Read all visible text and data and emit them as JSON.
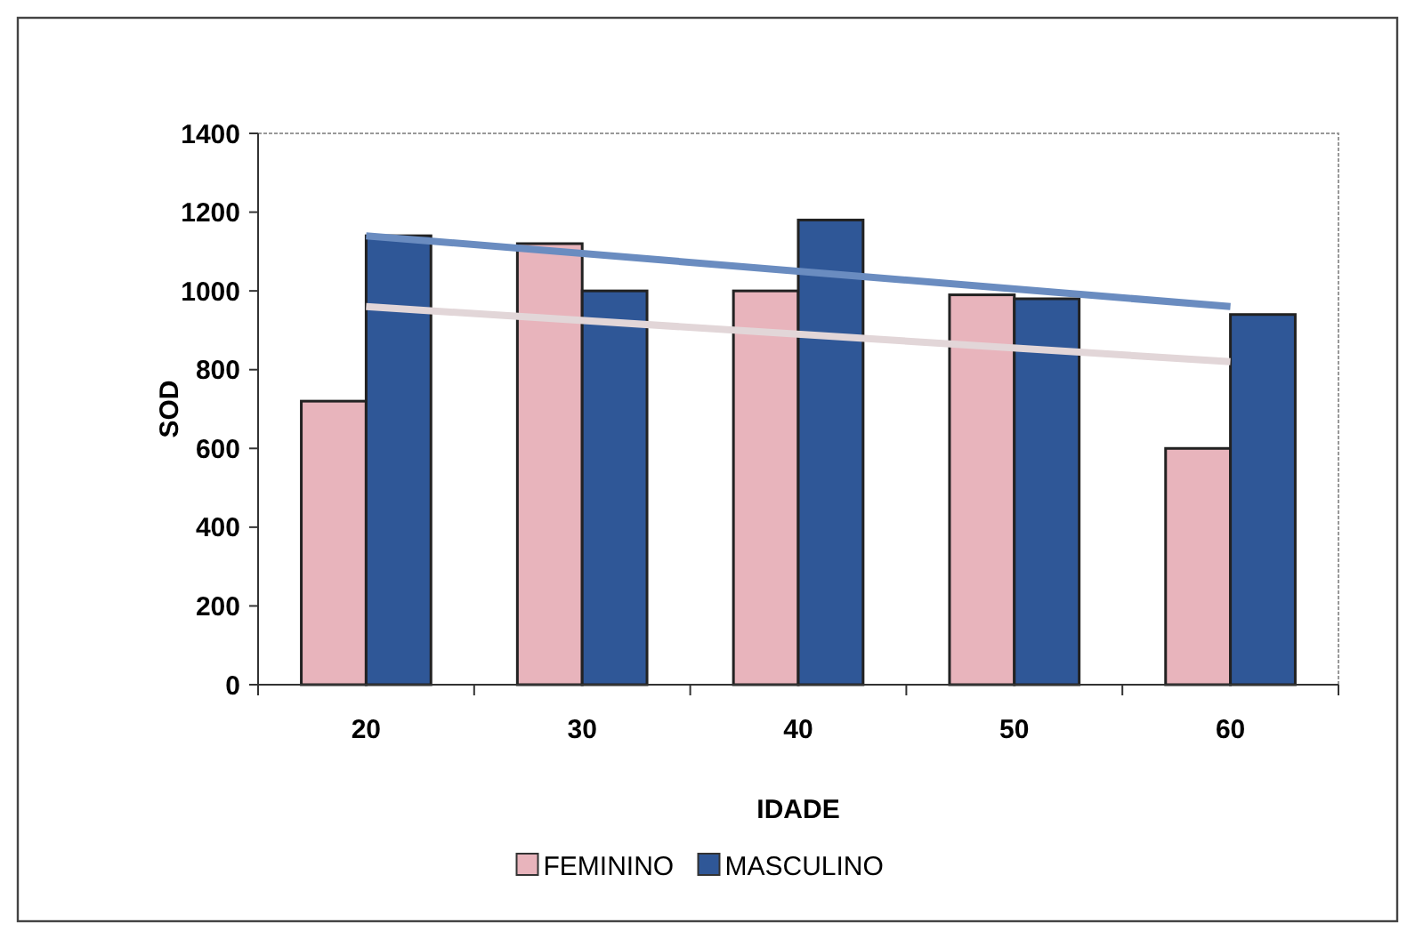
{
  "chart_data": {
    "type": "bar",
    "xlabel": "IDADE",
    "ylabel": "SOD",
    "categories": [
      "20",
      "30",
      "40",
      "50",
      "60"
    ],
    "series": [
      {
        "name": "FEMININO",
        "color": "#e8b4bc",
        "values": [
          720,
          1120,
          1000,
          990,
          600
        ]
      },
      {
        "name": "MASCULINO",
        "color": "#2f5797",
        "values": [
          1140,
          1000,
          1180,
          980,
          940
        ]
      },
      {
        "type": "line",
        "color": "#6a8cc0",
        "x": [
          "20",
          "60"
        ],
        "values": [
          1140,
          960
        ]
      },
      {
        "type": "line",
        "color": "#e2d6d8",
        "x": [
          "20",
          "60"
        ],
        "values": [
          960,
          820
        ]
      }
    ],
    "ylim": [
      0,
      1400
    ],
    "yticks": [
      0,
      200,
      400,
      600,
      800,
      1000,
      1200,
      1400
    ],
    "grid": false,
    "legend": "bottom"
  }
}
